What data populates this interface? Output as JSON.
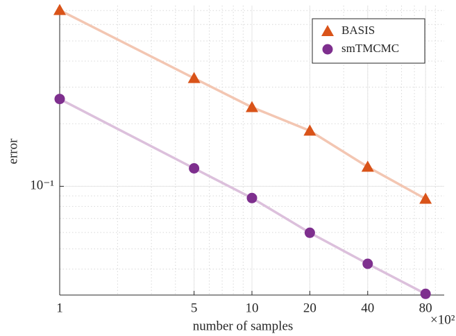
{
  "chart_data": {
    "type": "line",
    "log_x": true,
    "log_y": true,
    "grid": true,
    "minor_grid": true,
    "legend": "top-right",
    "x_label": "number of samples",
    "y_label": "error",
    "x_multiplier": "×10²",
    "x": [
      1,
      5,
      10,
      20,
      40,
      80
    ],
    "xlim": [
      1,
      100
    ],
    "ylim": [
      0.03,
      0.74
    ],
    "xticks": [
      1,
      5,
      10,
      20,
      40,
      80
    ],
    "yticks": [
      {
        "value": 0.1,
        "label": "10⁻¹"
      }
    ],
    "series": [
      {
        "name": "BASIS",
        "color": "#d95319",
        "line_color": "#f3c6b2",
        "marker": "triangle",
        "values": [
          0.703,
          0.331,
          0.24,
          0.185,
          0.124,
          0.087
        ]
      },
      {
        "name": "smTMCMC",
        "color": "#7e2f8e",
        "line_color": "#dcc0dc",
        "marker": "circle",
        "values": [
          0.263,
          0.122,
          0.0878,
          0.0598,
          0.0424,
          0.0304
        ]
      }
    ]
  }
}
